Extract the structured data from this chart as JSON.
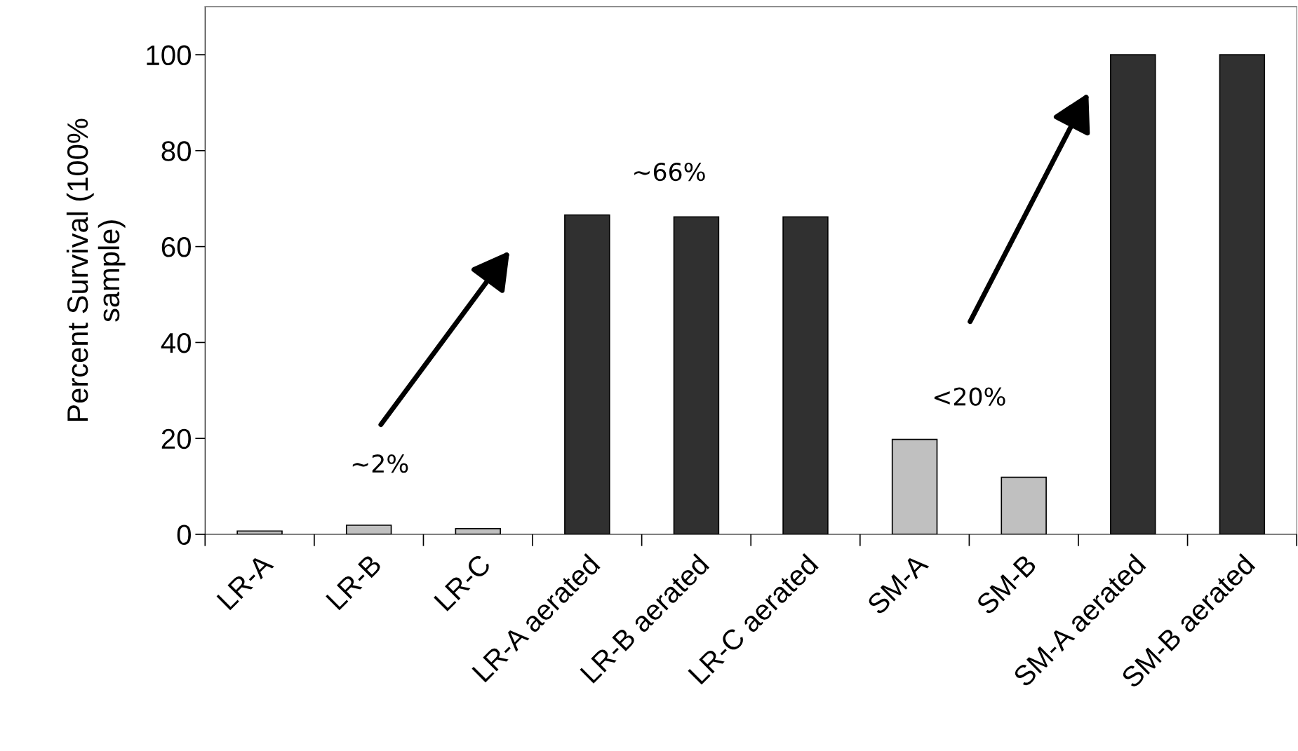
{
  "chart_data": {
    "type": "bar",
    "ylabel": "Percent Survival (100%\nsample)",
    "categories": [
      "LR-A",
      "LR-B",
      "LR-C",
      "LR-A aerated",
      "LR-B aerated",
      "LR-C aerated",
      "SM-A",
      "SM-B",
      "SM-A aerated",
      "SM-B aerated"
    ],
    "values": [
      0.7,
      1.9,
      1.2,
      66.6,
      66.2,
      66.2,
      19.8,
      11.9,
      100,
      100
    ],
    "colors": [
      "#c0c0c0",
      "#c0c0c0",
      "#c0c0c0",
      "#303030",
      "#303030",
      "#303030",
      "#c0c0c0",
      "#c0c0c0",
      "#303030",
      "#303030"
    ],
    "ylim": [
      0,
      110
    ],
    "yticks": [
      0,
      20,
      40,
      60,
      80,
      100
    ],
    "grid": false,
    "annotations": [
      "~2%",
      "~66%",
      "<20%"
    ]
  }
}
